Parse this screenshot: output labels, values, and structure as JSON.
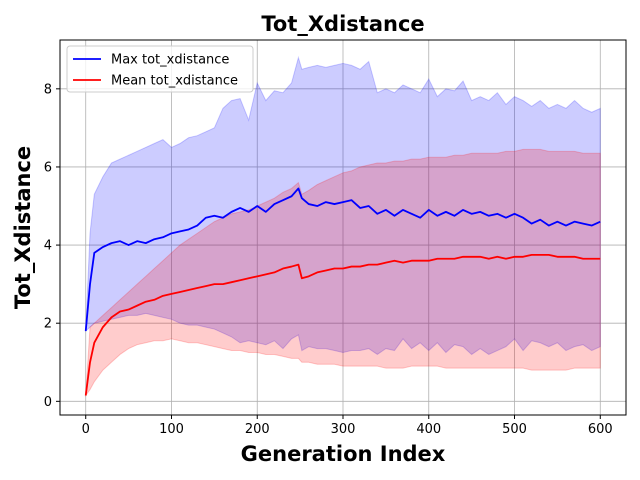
{
  "chart_data": {
    "type": "line",
    "title": "Tot_Xdistance",
    "xlabel": "Generation Index",
    "ylabel": "Tot_Xdistance",
    "xlim": [
      -30,
      630
    ],
    "ylim": [
      -0.35,
      9.25
    ],
    "x_ticks": [
      0,
      100,
      200,
      300,
      400,
      500,
      600
    ],
    "y_ticks": [
      0,
      2,
      4,
      6,
      8
    ],
    "grid": true,
    "legend_position": "top-left",
    "x": [
      0,
      5,
      10,
      20,
      30,
      40,
      50,
      60,
      70,
      80,
      90,
      100,
      110,
      120,
      130,
      140,
      150,
      160,
      170,
      180,
      190,
      200,
      210,
      220,
      230,
      240,
      248,
      252,
      260,
      270,
      280,
      290,
      300,
      310,
      320,
      330,
      340,
      350,
      360,
      370,
      380,
      390,
      400,
      410,
      420,
      430,
      440,
      450,
      460,
      470,
      480,
      490,
      500,
      510,
      520,
      530,
      540,
      550,
      560,
      570,
      580,
      590,
      600
    ],
    "series": [
      {
        "name": "Max tot_xdistance",
        "color": "#0000ff",
        "band_color": "#0000ff",
        "values": [
          1.8,
          3.0,
          3.8,
          3.95,
          4.05,
          4.1,
          4.0,
          4.1,
          4.05,
          4.15,
          4.2,
          4.3,
          4.35,
          4.4,
          4.5,
          4.7,
          4.75,
          4.7,
          4.85,
          4.95,
          4.85,
          5.0,
          4.85,
          5.05,
          5.15,
          5.25,
          5.45,
          5.2,
          5.05,
          5.0,
          5.1,
          5.05,
          5.1,
          5.15,
          4.95,
          5.0,
          4.8,
          4.9,
          4.75,
          4.9,
          4.8,
          4.7,
          4.9,
          4.75,
          4.85,
          4.75,
          4.9,
          4.8,
          4.85,
          4.75,
          4.8,
          4.7,
          4.8,
          4.7,
          4.55,
          4.65,
          4.5,
          4.6,
          4.5,
          4.6,
          4.55,
          4.5,
          4.6
        ],
        "band_upper": [
          1.8,
          4.3,
          5.3,
          5.75,
          6.1,
          6.2,
          6.3,
          6.4,
          6.5,
          6.6,
          6.7,
          6.5,
          6.6,
          6.75,
          6.8,
          6.9,
          7.0,
          7.5,
          7.7,
          7.75,
          7.2,
          8.15,
          7.7,
          7.95,
          7.9,
          8.15,
          8.8,
          8.5,
          8.55,
          8.6,
          8.55,
          8.6,
          8.65,
          8.6,
          8.5,
          8.7,
          7.9,
          8.0,
          7.9,
          8.1,
          8.0,
          7.9,
          8.25,
          7.8,
          8.0,
          7.95,
          8.2,
          7.7,
          7.8,
          7.7,
          7.9,
          7.6,
          7.8,
          7.7,
          7.55,
          7.7,
          7.5,
          7.6,
          7.5,
          7.7,
          7.5,
          7.4,
          7.5
        ],
        "band_lower": [
          1.8,
          1.9,
          2.0,
          2.05,
          2.1,
          2.15,
          2.2,
          2.2,
          2.25,
          2.2,
          2.15,
          2.1,
          2.0,
          1.95,
          1.95,
          1.9,
          1.85,
          1.75,
          1.65,
          1.5,
          1.55,
          1.5,
          1.45,
          1.55,
          1.35,
          1.6,
          1.7,
          1.3,
          1.4,
          1.35,
          1.35,
          1.3,
          1.25,
          1.3,
          1.3,
          1.35,
          1.2,
          1.35,
          1.3,
          1.6,
          1.35,
          1.5,
          1.3,
          1.5,
          1.25,
          1.45,
          1.4,
          1.2,
          1.35,
          1.2,
          1.3,
          1.4,
          1.6,
          1.3,
          1.55,
          1.5,
          1.4,
          1.5,
          1.3,
          1.4,
          1.45,
          1.3,
          1.4
        ]
      },
      {
        "name": "Mean tot_xdistance",
        "color": "#ff0000",
        "band_color": "#ff0000",
        "values": [
          0.15,
          1.0,
          1.5,
          1.9,
          2.15,
          2.3,
          2.35,
          2.45,
          2.55,
          2.6,
          2.7,
          2.75,
          2.8,
          2.85,
          2.9,
          2.95,
          3.0,
          3.0,
          3.05,
          3.1,
          3.15,
          3.2,
          3.25,
          3.3,
          3.4,
          3.45,
          3.5,
          3.15,
          3.2,
          3.3,
          3.35,
          3.4,
          3.4,
          3.45,
          3.45,
          3.5,
          3.5,
          3.55,
          3.6,
          3.55,
          3.6,
          3.6,
          3.6,
          3.65,
          3.65,
          3.65,
          3.7,
          3.7,
          3.7,
          3.65,
          3.7,
          3.65,
          3.7,
          3.7,
          3.75,
          3.75,
          3.75,
          3.7,
          3.7,
          3.7,
          3.65,
          3.65,
          3.65
        ],
        "band_upper": [
          0.15,
          1.9,
          2.0,
          2.2,
          2.4,
          2.6,
          2.8,
          3.0,
          3.2,
          3.4,
          3.6,
          3.8,
          4.0,
          4.15,
          4.3,
          4.45,
          4.6,
          4.7,
          4.8,
          4.85,
          4.9,
          5.0,
          5.1,
          5.2,
          5.35,
          5.45,
          5.6,
          5.3,
          5.4,
          5.55,
          5.65,
          5.75,
          5.85,
          5.9,
          6.0,
          6.05,
          6.1,
          6.1,
          6.15,
          6.15,
          6.2,
          6.2,
          6.25,
          6.25,
          6.25,
          6.3,
          6.3,
          6.35,
          6.35,
          6.35,
          6.35,
          6.4,
          6.4,
          6.45,
          6.45,
          6.45,
          6.4,
          6.4,
          6.4,
          6.4,
          6.35,
          6.35,
          6.35
        ],
        "band_lower": [
          0.15,
          0.3,
          0.5,
          0.8,
          1.0,
          1.2,
          1.35,
          1.45,
          1.5,
          1.55,
          1.55,
          1.6,
          1.55,
          1.5,
          1.5,
          1.45,
          1.4,
          1.35,
          1.3,
          1.3,
          1.25,
          1.25,
          1.2,
          1.2,
          1.15,
          1.1,
          1.1,
          1.0,
          1.0,
          0.95,
          0.95,
          0.95,
          0.9,
          0.9,
          0.9,
          0.9,
          0.9,
          0.85,
          0.85,
          0.85,
          0.9,
          0.9,
          0.9,
          0.9,
          0.85,
          0.85,
          0.85,
          0.85,
          0.85,
          0.85,
          0.85,
          0.85,
          0.85,
          0.85,
          0.8,
          0.8,
          0.8,
          0.8,
          0.8,
          0.85,
          0.85,
          0.85,
          0.85
        ]
      }
    ]
  }
}
